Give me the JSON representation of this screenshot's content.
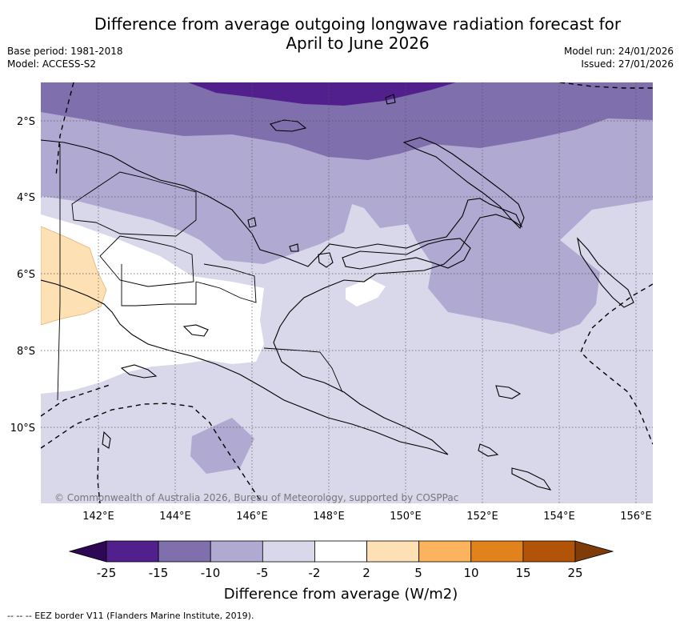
{
  "title_line1": "Difference from average outgoing longwave radiation forecast for",
  "title_line2": "April to June 2026",
  "meta_left": {
    "base_period": "Base period: 1981-2018",
    "model": "Model: ACCESS-S2"
  },
  "meta_right": {
    "model_run": "Model run: 24/01/2026",
    "issued": "Issued: 27/01/2026"
  },
  "map": {
    "lat_labels": [
      "2°S",
      "4°S",
      "6°S",
      "8°S",
      "10°S"
    ],
    "lon_labels": [
      "142°E",
      "144°E",
      "146°E",
      "148°E",
      "150°E",
      "152°E",
      "154°E",
      "156°E"
    ],
    "copyright": "© Commonwealth of Australia 2026, Bureau of Meteorology, supported by COSPPac"
  },
  "colorbar": {
    "label": "Difference from average (W/m2)",
    "ticks": [
      "-25",
      "-15",
      "-10",
      "-5",
      "-2",
      "2",
      "5",
      "10",
      "15",
      "25"
    ],
    "colors": [
      "#52208c",
      "#7f6fac",
      "#b0a9d2",
      "#d8d8ea",
      "#ffffff",
      "#fde0b4",
      "#fbb35e",
      "#e1821c",
      "#b15408"
    ],
    "under_color": "#2e0854",
    "over_color": "#7f3b08"
  },
  "legend_note": "-- --  -- EEZ border V11 (Flanders Marine Institute, 2019)."
}
